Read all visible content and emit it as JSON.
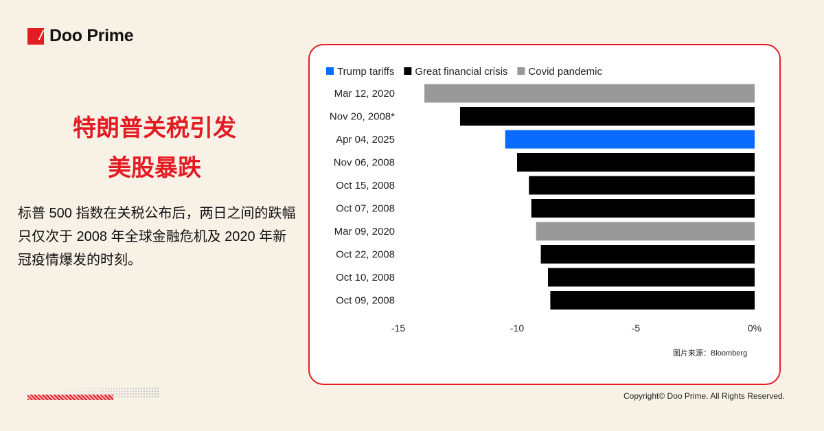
{
  "brand": {
    "name": "Doo Prime",
    "color": "#e31b23"
  },
  "headline": [
    "特朗普关税引发",
    "美股暴跌"
  ],
  "description": "标普 500 指数在关税公布后，两日之间的跌幅只仅次于 2008 年全球金融危机及 2020 年新冠疫情爆发的时刻。",
  "source": "图片来源：Bloomberg",
  "copyright": "Copyright© Doo Prime. All Rights Reserved.",
  "chart_data": {
    "type": "bar",
    "orientation": "horizontal",
    "legend": [
      {
        "name": "Trump tariffs",
        "color": "#0a6cff"
      },
      {
        "name": "Great financial crisis",
        "color": "#000000"
      },
      {
        "name": "Covid pandemic",
        "color": "#999999"
      }
    ],
    "legend_position": "top-left",
    "categories": [
      "Mar 12, 2020",
      "Nov 20, 2008*",
      "Apr 04, 2025",
      "Nov 06, 2008",
      "Oct 15, 2008",
      "Oct 07, 2008",
      "Mar 09, 2020",
      "Oct 22, 2008",
      "Oct 10, 2008",
      "Oct 09, 2008"
    ],
    "values": [
      -13.9,
      -12.4,
      -10.5,
      -10.0,
      -9.5,
      -9.4,
      -9.2,
      -9.0,
      -8.7,
      -8.6
    ],
    "groups": [
      "Covid pandemic",
      "Great financial crisis",
      "Trump tariffs",
      "Great financial crisis",
      "Great financial crisis",
      "Great financial crisis",
      "Covid pandemic",
      "Great financial crisis",
      "Great financial crisis",
      "Great financial crisis"
    ],
    "xlim": [
      -15,
      0
    ],
    "xticks": [
      "-15",
      "-10",
      "-5",
      "0%"
    ],
    "xtick_values": [
      -15,
      -10,
      -5,
      0
    ],
    "grid": false
  }
}
